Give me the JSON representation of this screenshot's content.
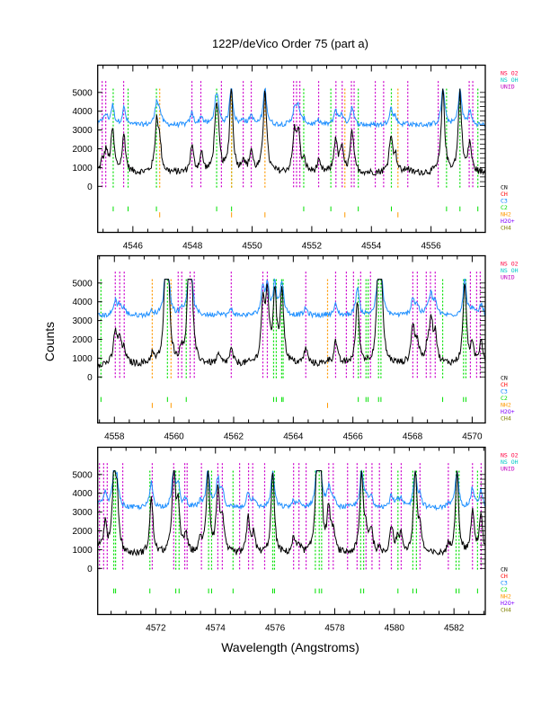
{
  "chart_data": {
    "type": "line",
    "title": "122P/deVico Order 75 (part a)",
    "xlabel": "Wavelength (Angstroms)",
    "ylabel": "Counts",
    "ylim": [
      -2450,
      6450
    ],
    "yticks": [
      0,
      1000,
      2000,
      3000,
      4000,
      5000
    ],
    "saturation": 5200,
    "colors": {
      "spectrum_black": "#000000",
      "spectrum_blue": "#1e8fff",
      "unid_line": "#cc00cc",
      "c2_line": "#00e000",
      "nh2_line": "#ff9900"
    },
    "legend_top": [
      {
        "label": "NS O2",
        "color": "#ff0040"
      },
      {
        "label": "NS OH",
        "color": "#00c8c8"
      },
      {
        "label": "UNID",
        "color": "#c000c0"
      }
    ],
    "legend_bottom": [
      {
        "label": "CN",
        "color": "#000000"
      },
      {
        "label": "CH",
        "color": "#ff0000"
      },
      {
        "label": "C3",
        "color": "#0080ff"
      },
      {
        "label": "C2",
        "color": "#00e000"
      },
      {
        "label": "NH2",
        "color": "#ff9900"
      },
      {
        "label": "H2O+",
        "color": "#8000ff"
      },
      {
        "label": "CH4",
        "color": "#808000"
      }
    ],
    "panels": [
      {
        "xlim": [
          4544.82,
          4557.82
        ],
        "xticks": [
          4546,
          4548,
          4550,
          4552,
          4554,
          4556
        ],
        "xtick_labels": [
          "4546",
          "4548",
          "4550",
          "4552",
          "4554",
          "4556"
        ],
        "black_baseline": 700,
        "blue_baseline": 3250,
        "black_peaks": [
          [
            4544.97,
            1200
          ],
          [
            4545.1,
            1800
          ],
          [
            4545.32,
            2950
          ],
          [
            4545.7,
            2700
          ],
          [
            4546.8,
            3400
          ],
          [
            4546.9,
            2000
          ],
          [
            4547.98,
            2100
          ],
          [
            4548.3,
            1700
          ],
          [
            4548.78,
            3050
          ],
          [
            4548.85,
            2800
          ],
          [
            4549.3,
            5200
          ],
          [
            4549.7,
            1350
          ],
          [
            4549.97,
            1850
          ],
          [
            4550.43,
            5200
          ],
          [
            4551.42,
            2700
          ],
          [
            4551.55,
            2800
          ],
          [
            4551.75,
            1200
          ],
          [
            4552.23,
            1250
          ],
          [
            4552.8,
            2500
          ],
          [
            4553.0,
            2000
          ],
          [
            4553.35,
            2900
          ],
          [
            4554.65,
            2650
          ],
          [
            4554.8,
            1600
          ],
          [
            4555.2,
            950
          ],
          [
            4556.4,
            5200
          ],
          [
            4556.97,
            5000
          ],
          [
            4557.3,
            2300
          ]
        ],
        "unid_lines": [
          4544.97,
          4545.09,
          4545.69,
          4547.98,
          4548.28,
          4548.97,
          4549.7,
          4549.97,
          4551.39,
          4551.49,
          4551.6,
          4552.23,
          4552.81,
          4553.02,
          4553.33,
          4553.42,
          4554.13,
          4554.41,
          4555.22,
          4556.24,
          4557.28,
          4557.4
        ],
        "c2_lines": [
          4545.34,
          4545.84,
          4546.79,
          4548.81,
          4549.31,
          4551.73,
          4552.64,
          4553.56,
          4554.67,
          4556.52,
          4556.97,
          4557.57
        ],
        "nh2_lines": [
          4546.9,
          4549.31,
          4550.43,
          4553.11,
          4554.89
        ]
      },
      {
        "xlim": [
          4557.44,
          4570.44
        ],
        "xticks": [
          4558,
          4560,
          4562,
          4564,
          4566,
          4568,
          4570
        ],
        "xtick_labels": [
          "4558",
          "4560",
          "4562",
          "4564",
          "4566",
          "4568",
          "4570"
        ],
        "black_baseline": 650,
        "blue_baseline": 3250,
        "black_peaks": [
          [
            4558.03,
            2400
          ],
          [
            4558.18,
            1900
          ],
          [
            4558.33,
            1350
          ],
          [
            4559.27,
            1150
          ],
          [
            4559.72,
            5200
          ],
          [
            4559.8,
            5200
          ],
          [
            4560.26,
            1300
          ],
          [
            4560.5,
            5200
          ],
          [
            4560.58,
            4500
          ],
          [
            4561.5,
            1100
          ],
          [
            4561.92,
            1400
          ],
          [
            4562.98,
            3800
          ],
          [
            4563.13,
            4200
          ],
          [
            4563.38,
            4400
          ],
          [
            4563.62,
            4600
          ],
          [
            4564.42,
            1500
          ],
          [
            4565.15,
            850
          ],
          [
            4565.42,
            1900
          ],
          [
            4566.15,
            4000
          ],
          [
            4566.85,
            5200
          ],
          [
            4566.95,
            4800
          ],
          [
            4568.01,
            2700
          ],
          [
            4568.16,
            1800
          ],
          [
            4568.5,
            1500
          ],
          [
            4568.62,
            2900
          ],
          [
            4568.76,
            2200
          ],
          [
            4569.75,
            5000
          ],
          [
            4570.0,
            1500
          ],
          [
            4570.3,
            2000
          ]
        ],
        "unid_lines": [
          4558.03,
          4558.18,
          4558.33,
          4560.14,
          4560.26,
          4560.54,
          4560.68,
          4561.92,
          4562.98,
          4563.13,
          4564.42,
          4565.42,
          4565.78,
          4566.02,
          4566.26,
          4566.59,
          4568.01,
          4568.16,
          4568.46,
          4568.6,
          4568.76,
          4569.94,
          4570.15,
          4570.27
        ],
        "c2_lines": [
          4557.55,
          4559.78,
          4560.41,
          4563.34,
          4563.43,
          4563.61,
          4563.66,
          4566.18,
          4566.44,
          4566.51,
          4566.86,
          4566.94,
          4569.01,
          4569.71,
          4569.79
        ],
        "nh2_lines": [
          4559.27,
          4559.9,
          4565.15
        ]
      },
      {
        "xlim": [
          4570.05,
          4583.05
        ],
        "xticks": [
          4572,
          4574,
          4576,
          4578,
          4580,
          4582
        ],
        "xtick_labels": [
          "4572",
          "4574",
          "4576",
          "4578",
          "4580",
          "4582"
        ],
        "black_baseline": 700,
        "blue_baseline": 3200,
        "black_peaks": [
          [
            4570.11,
            1200
          ],
          [
            4570.3,
            2300
          ],
          [
            4570.6,
            5100
          ],
          [
            4570.7,
            3300
          ],
          [
            4571.85,
            3700
          ],
          [
            4572.6,
            5200
          ],
          [
            4572.75,
            3000
          ],
          [
            4573.0,
            1700
          ],
          [
            4573.5,
            1400
          ],
          [
            4573.75,
            5100
          ],
          [
            4574.08,
            4000
          ],
          [
            4574.23,
            2500
          ],
          [
            4575.1,
            2600
          ],
          [
            4575.28,
            1700
          ],
          [
            4575.92,
            5100
          ],
          [
            4576.62,
            1500
          ],
          [
            4576.8,
            1250
          ],
          [
            4577.4,
            4800
          ],
          [
            4577.52,
            5200
          ],
          [
            4577.8,
            3000
          ],
          [
            4577.95,
            1800
          ],
          [
            4578.9,
            5000
          ],
          [
            4579.05,
            1800
          ],
          [
            4579.22,
            2000
          ],
          [
            4579.5,
            900
          ],
          [
            4579.9,
            2200
          ],
          [
            4580.1,
            1400
          ],
          [
            4580.23,
            1600
          ],
          [
            4580.7,
            5100
          ],
          [
            4580.86,
            2000
          ],
          [
            4581.81,
            1100
          ],
          [
            4582.1,
            5200
          ],
          [
            4582.62,
            3000
          ],
          [
            4582.9,
            2800
          ]
        ],
        "unid_lines": [
          4570.11,
          4570.25,
          4570.37,
          4570.89,
          4571.88,
          4572.6,
          4572.97,
          4573.05,
          4573.53,
          4574.08,
          4574.23,
          4574.81,
          4575.11,
          4575.25,
          4575.65,
          4576.62,
          4576.8,
          4577.04,
          4577.8,
          4577.95,
          4578.43,
          4578.75,
          4579.05,
          4579.25,
          4579.5,
          4579.9,
          4580.23,
          4580.86,
          4581.81,
          4582.62,
          4582.91
        ],
        "c2_lines": [
          4570.59,
          4570.65,
          4571.8,
          4572.67,
          4572.78,
          4573.77,
          4573.87,
          4574.59,
          4575.92,
          4575.98,
          4577.35,
          4577.48,
          4577.56,
          4578.87,
          4578.97,
          4580.12,
          4580.62,
          4580.74,
          4582.07,
          4582.17,
          4582.79
        ],
        "nh2_lines": []
      }
    ]
  }
}
